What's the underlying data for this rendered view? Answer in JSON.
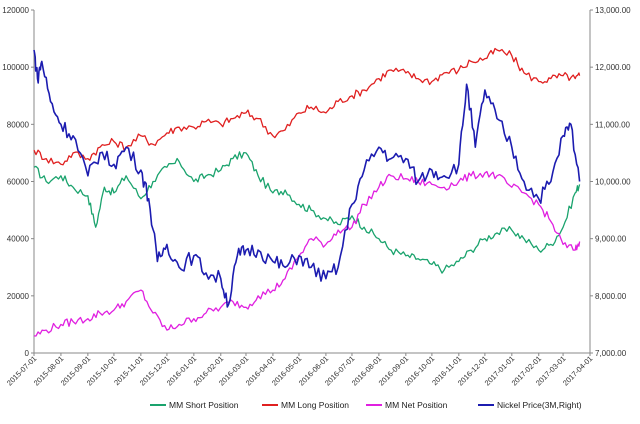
{
  "chart_data": {
    "type": "line",
    "title": "",
    "xlabel": "",
    "ylabel": "",
    "y2label": "",
    "grid": false,
    "legend_position": "bottom",
    "x_ticks": [
      "2015-07-01",
      "2015-08-01",
      "2015-09-01",
      "2015-10-01",
      "2015-11-01",
      "2015-12-01",
      "2016-01-01",
      "2016-02-01",
      "2016-03-01",
      "2016-04-01",
      "2016-05-01",
      "2016-06-01",
      "2016-07-01",
      "2016-08-01",
      "2016-09-01",
      "2016-10-01",
      "2016-11-01",
      "2016-12-01",
      "2017-01-01",
      "2017-02-01",
      "2017-03-01",
      "2017-04-01"
    ],
    "ylim_left": [
      0,
      120000
    ],
    "yticks_left": [
      "0",
      "20000",
      "40000",
      "60000",
      "80000",
      "100000",
      "120000"
    ],
    "ylim_right": [
      7000,
      13000
    ],
    "yticks_right": [
      "7,000.00",
      "8,000.00",
      "9,000.00",
      "10,000.00",
      "11,000.00",
      "12,000.00",
      "13,000.00"
    ],
    "series": [
      {
        "name": "MM Short Position",
        "color": "#1aa36d",
        "axis": "left",
        "x": [
          "2015-07-01",
          "2015-07-15",
          "2015-08-01",
          "2015-08-15",
          "2015-09-01",
          "2015-09-10",
          "2015-09-20",
          "2015-10-01",
          "2015-10-15",
          "2015-11-01",
          "2015-11-15",
          "2015-12-01",
          "2015-12-15",
          "2016-01-01",
          "2016-01-15",
          "2016-02-01",
          "2016-02-15",
          "2016-03-01",
          "2016-03-15",
          "2016-04-01",
          "2016-04-15",
          "2016-05-01",
          "2016-05-15",
          "2016-06-01",
          "2016-06-15",
          "2016-07-01",
          "2016-07-15",
          "2016-08-01",
          "2016-08-15",
          "2016-09-01",
          "2016-09-15",
          "2016-10-01",
          "2016-10-15",
          "2016-11-01",
          "2016-11-15",
          "2016-12-01",
          "2016-12-15",
          "2017-01-01",
          "2017-01-15",
          "2017-02-01",
          "2017-02-15",
          "2017-03-01",
          "2017-03-15",
          "2017-03-20"
        ],
        "values": [
          65000,
          60000,
          62000,
          58000,
          55000,
          44000,
          58000,
          56000,
          62000,
          54000,
          60000,
          65000,
          67000,
          60000,
          62000,
          64000,
          68000,
          70000,
          62000,
          56000,
          57000,
          52000,
          50000,
          47000,
          45000,
          48000,
          44000,
          40000,
          36000,
          34000,
          33000,
          31000,
          29000,
          32000,
          36000,
          40000,
          42000,
          43000,
          40000,
          36000,
          38000,
          44000,
          56000,
          59000
        ]
      },
      {
        "name": "MM Long Position",
        "color": "#e02020",
        "axis": "left",
        "x": [
          "2015-07-01",
          "2015-07-15",
          "2015-08-01",
          "2015-08-15",
          "2015-09-01",
          "2015-09-15",
          "2015-10-01",
          "2015-10-15",
          "2015-11-01",
          "2015-11-15",
          "2015-12-01",
          "2015-12-15",
          "2016-01-01",
          "2016-01-15",
          "2016-02-01",
          "2016-02-15",
          "2016-03-01",
          "2016-03-15",
          "2016-04-01",
          "2016-04-15",
          "2016-05-01",
          "2016-05-15",
          "2016-06-01",
          "2016-06-15",
          "2016-07-01",
          "2016-07-15",
          "2016-08-01",
          "2016-08-15",
          "2016-09-01",
          "2016-09-15",
          "2016-10-01",
          "2016-10-15",
          "2016-11-01",
          "2016-11-15",
          "2016-12-01",
          "2016-12-15",
          "2017-01-01",
          "2017-01-15",
          "2017-02-01",
          "2017-02-15",
          "2017-03-01",
          "2017-03-15",
          "2017-03-20"
        ],
        "values": [
          71000,
          68000,
          66000,
          70000,
          68000,
          72000,
          74000,
          72000,
          76000,
          73000,
          77000,
          79000,
          79000,
          81000,
          80000,
          82000,
          84000,
          82000,
          76000,
          78000,
          84000,
          86000,
          84000,
          88000,
          90000,
          92000,
          96000,
          99000,
          98000,
          96000,
          95000,
          98000,
          99000,
          102000,
          103000,
          106000,
          104000,
          98000,
          95000,
          96000,
          97000,
          96000,
          97000
        ]
      },
      {
        "name": "MM Net Position",
        "color": "#e020e0",
        "axis": "left",
        "x": [
          "2015-07-01",
          "2015-07-15",
          "2015-08-01",
          "2015-08-15",
          "2015-09-01",
          "2015-09-15",
          "2015-10-01",
          "2015-10-15",
          "2015-11-01",
          "2015-11-15",
          "2015-12-01",
          "2015-12-15",
          "2016-01-01",
          "2016-01-15",
          "2016-02-01",
          "2016-02-15",
          "2016-03-01",
          "2016-03-15",
          "2016-04-01",
          "2016-04-15",
          "2016-05-01",
          "2016-05-15",
          "2016-06-01",
          "2016-06-15",
          "2016-07-01",
          "2016-07-15",
          "2016-08-01",
          "2016-08-15",
          "2016-09-01",
          "2016-09-15",
          "2016-10-01",
          "2016-10-15",
          "2016-11-01",
          "2016-11-15",
          "2016-12-01",
          "2016-12-15",
          "2017-01-01",
          "2017-01-15",
          "2017-02-01",
          "2017-02-15",
          "2017-03-01",
          "2017-03-15",
          "2017-03-20"
        ],
        "values": [
          6000,
          8000,
          10000,
          11000,
          12000,
          14000,
          15000,
          18000,
          22000,
          14000,
          8000,
          10000,
          12000,
          14000,
          16000,
          18000,
          16000,
          20000,
          22000,
          26000,
          34000,
          40000,
          38000,
          43000,
          44000,
          52000,
          58000,
          62000,
          61000,
          60000,
          59000,
          58000,
          60000,
          62000,
          63000,
          62000,
          58000,
          56000,
          52000,
          46000,
          38000,
          36000,
          39000
        ]
      },
      {
        "name": "Nickel Price(3M,Right)",
        "color": "#1c1cb0",
        "axis": "right",
        "x": [
          "2015-07-01",
          "2015-07-05",
          "2015-07-10",
          "2015-07-20",
          "2015-08-01",
          "2015-08-15",
          "2015-09-01",
          "2015-09-15",
          "2015-10-01",
          "2015-10-15",
          "2015-11-01",
          "2015-11-10",
          "2015-11-20",
          "2015-12-01",
          "2015-12-15",
          "2016-01-01",
          "2016-01-15",
          "2016-02-01",
          "2016-02-10",
          "2016-02-20",
          "2016-03-01",
          "2016-03-15",
          "2016-04-01",
          "2016-04-15",
          "2016-05-01",
          "2016-05-15",
          "2016-06-01",
          "2016-06-15",
          "2016-07-01",
          "2016-07-15",
          "2016-08-01",
          "2016-08-15",
          "2016-09-01",
          "2016-09-15",
          "2016-10-01",
          "2016-10-15",
          "2016-11-01",
          "2016-11-10",
          "2016-11-20",
          "2016-12-01",
          "2016-12-15",
          "2017-01-01",
          "2017-01-15",
          "2017-02-01",
          "2017-02-15",
          "2017-03-01",
          "2017-03-10",
          "2017-03-20"
        ],
        "values": [
          12300,
          11800,
          12100,
          11400,
          11000,
          10800,
          10100,
          10500,
          10300,
          10600,
          10200,
          9700,
          8600,
          8900,
          8500,
          8700,
          8400,
          8300,
          7850,
          8700,
          8800,
          8800,
          8600,
          8500,
          8700,
          8500,
          8300,
          8500,
          9600,
          10200,
          10600,
          10400,
          10400,
          10000,
          10200,
          10100,
          10300,
          11700,
          10600,
          11600,
          11100,
          10600,
          10000,
          9700,
          10000,
          10800,
          11000,
          10000
        ]
      }
    ]
  }
}
